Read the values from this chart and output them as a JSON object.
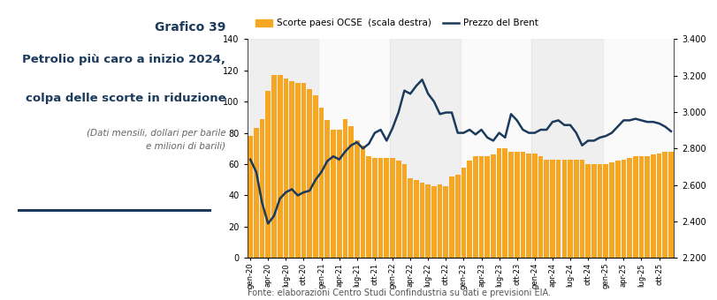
{
  "title_line1": "Grafico 39",
  "title_line2": "Petrolio più caro a inizio 2024,",
  "title_line3": "colpa delle scorte in riduzione",
  "subtitle": "(Dati mensili, dollari per barile\ne milioni di barili)",
  "fonte": "Fonte: elaborazioni Centro Studi Confindustria su dati e previsioni EIA.",
  "legend_bar": "Scorte paesi OCSE  (scala destra)",
  "legend_line": "Prezzo del Brent",
  "bar_color": "#F5A623",
  "line_color": "#1B3A5C",
  "background_color": "#FFFFFF",
  "stripe_dark": "#E0E0E0",
  "stripe_light": "#F0F0F0",
  "title_color": "#1B3A5C",
  "fonte_color": "#555555",
  "left_ylim": [
    0,
    140
  ],
  "left_yticks": [
    0,
    20,
    40,
    60,
    80,
    100,
    120,
    140
  ],
  "right_ylim": [
    2200,
    3400
  ],
  "right_yticks": [
    2200,
    2400,
    2600,
    2800,
    3000,
    3200,
    3400
  ],
  "bar_data": [
    78,
    83,
    89,
    107,
    117,
    117,
    115,
    113,
    112,
    112,
    108,
    104,
    96,
    88,
    82,
    82,
    89,
    84,
    75,
    72,
    65,
    64,
    64,
    64,
    64,
    62,
    60,
    51,
    50,
    48,
    47,
    46,
    47,
    46,
    52,
    53,
    58,
    62,
    65,
    65,
    65,
    66,
    70,
    70,
    68,
    68,
    68,
    67,
    67,
    65,
    63,
    63,
    63,
    63,
    63,
    63,
    63,
    60,
    60,
    60,
    60,
    61,
    62,
    63,
    64,
    65,
    65,
    65,
    66,
    67,
    68,
    68
  ],
  "brent_data": [
    63,
    55,
    35,
    22,
    27,
    38,
    42,
    44,
    40,
    42,
    43,
    50,
    55,
    62,
    65,
    63,
    68,
    72,
    74,
    70,
    73,
    80,
    82,
    75,
    83,
    93,
    107,
    105,
    110,
    114,
    105,
    100,
    92,
    93,
    93,
    80,
    80,
    82,
    79,
    82,
    77,
    75,
    80,
    77,
    92,
    88,
    82,
    80,
    80,
    82,
    82,
    87,
    88,
    85,
    85,
    80,
    72,
    75,
    75,
    77,
    78,
    80,
    84,
    88,
    88,
    89,
    88,
    87,
    87,
    86,
    84,
    81
  ]
}
